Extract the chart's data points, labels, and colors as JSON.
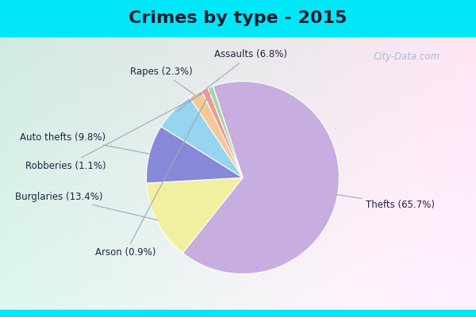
{
  "title": "Crimes by type - 2015",
  "labels": [
    "Thefts",
    "Burglaries",
    "Auto thefts",
    "Assaults",
    "Rapes",
    "Robberies",
    "Arson"
  ],
  "percentages": [
    65.7,
    13.4,
    9.8,
    6.8,
    2.3,
    1.1,
    0.9
  ],
  "colors": [
    "#c8aee0",
    "#f0f0a0",
    "#8888d8",
    "#96d4f0",
    "#f5c898",
    "#f09898",
    "#a8d8a0"
  ],
  "background_cyan": "#00e8f8",
  "title_fontsize": 16,
  "label_fontsize": 9,
  "startangle": 108,
  "watermark": "City-Data.com",
  "label_positions": {
    "Thefts": [
      1.28,
      -0.28,
      "left"
    ],
    "Burglaries": [
      -1.45,
      -0.2,
      "right"
    ],
    "Auto thefts": [
      -1.42,
      0.42,
      "right"
    ],
    "Assaults": [
      0.08,
      1.28,
      "center"
    ],
    "Rapes": [
      -0.52,
      1.1,
      "right"
    ],
    "Robberies": [
      -1.42,
      0.12,
      "right"
    ],
    "Arson": [
      -0.9,
      -0.78,
      "right"
    ]
  }
}
